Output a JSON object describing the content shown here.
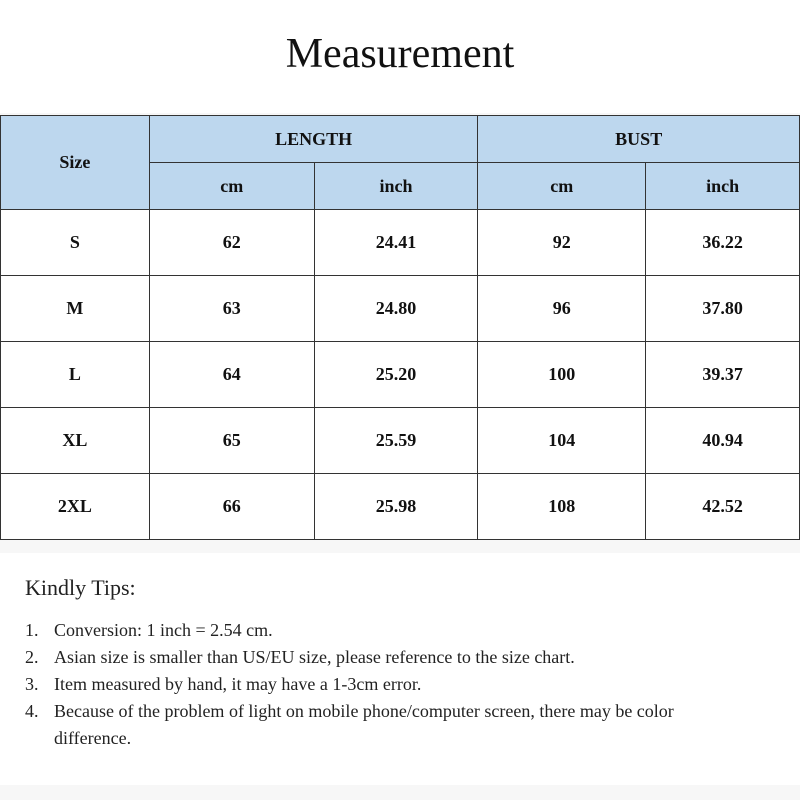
{
  "title": "Measurement",
  "table": {
    "size_header": "Size",
    "groups": [
      "LENGTH",
      "BUST"
    ],
    "units": [
      "cm",
      "inch",
      "cm",
      "inch"
    ],
    "rows": [
      {
        "size": "S",
        "length_cm": "62",
        "length_inch": "24.41",
        "bust_cm": "92",
        "bust_inch": "36.22"
      },
      {
        "size": "M",
        "length_cm": "63",
        "length_inch": "24.80",
        "bust_cm": "96",
        "bust_inch": "37.80"
      },
      {
        "size": "L",
        "length_cm": "64",
        "length_inch": "25.20",
        "bust_cm": "100",
        "bust_inch": "39.37"
      },
      {
        "size": "XL",
        "length_cm": "65",
        "length_inch": "25.59",
        "bust_cm": "104",
        "bust_inch": "40.94"
      },
      {
        "size": "2XL",
        "length_cm": "66",
        "length_inch": "25.98",
        "bust_cm": "108",
        "bust_inch": "42.52"
      }
    ],
    "header_color": "#bdd7ee"
  },
  "tips": {
    "heading": "Kindly Tips:",
    "items": [
      {
        "num": "1.",
        "text": "Conversion: 1 inch = 2.54 cm."
      },
      {
        "num": "2.",
        "text": "Asian size is smaller than US/EU size, please reference to the size chart."
      },
      {
        "num": "3.",
        "text": "Item measured by hand, it may have a 1-3cm error."
      },
      {
        "num": "4.",
        "text": "Because of the problem of light on mobile phone/computer screen, there may be color difference."
      }
    ]
  }
}
